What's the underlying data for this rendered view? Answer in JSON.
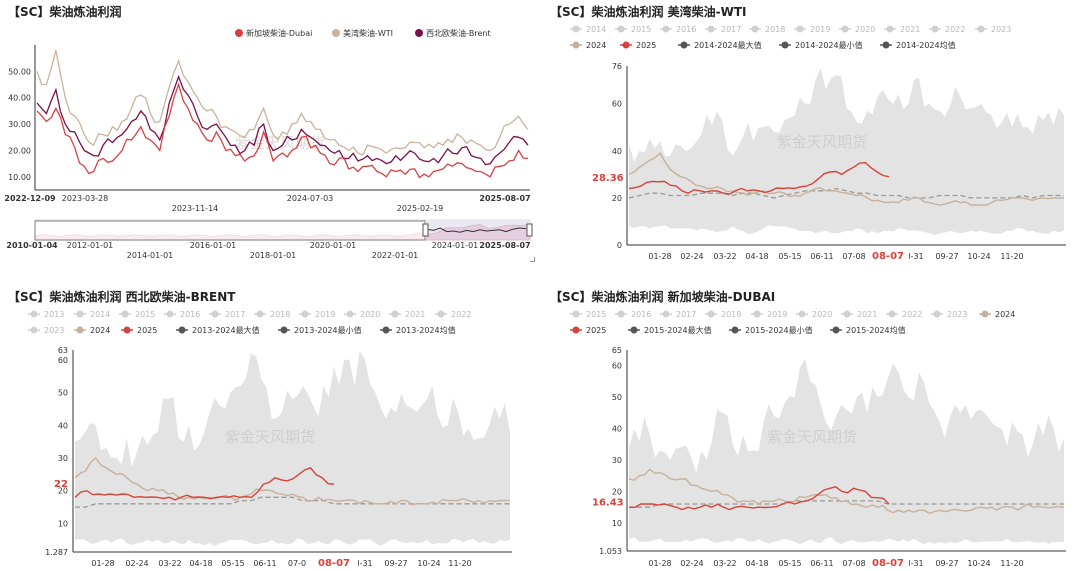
{
  "panels": {
    "p1": {
      "title": "【SC】柴油炼油利润"
    },
    "p2": {
      "title": "【SC】柴油炼油利润 美湾柴油-WTI"
    },
    "p3": {
      "title": "【SC】柴油炼油利润 西北欧柴油-BRENT"
    },
    "p4": {
      "title": "【SC】柴油炼油利润 新加坡柴油-DUBAI"
    }
  },
  "watermark": "紫金天风期货",
  "colors": {
    "dubai": "#d94040",
    "wti": "#c9b49b",
    "brent": "#7a1048",
    "band": "#e3e3e3",
    "avg": "#999999",
    "y2025": "#d9423a",
    "y2024": "#c6b19c"
  },
  "chart_data": [
    {
      "type": "line",
      "title": "【SC】柴油炼油利润",
      "legend_position": "top-right",
      "ylim": [
        5,
        60
      ],
      "y_ticks": [
        "10.00",
        "20.00",
        "30.00",
        "40.00",
        "50.00"
      ],
      "x_ticks": [
        "2022-12-09",
        "2023-03-28",
        "2023-11-14",
        "2024-07-03",
        "2025-02-19",
        "2025-08-07"
      ],
      "navigator_ticks": [
        "2010-01-04",
        "2012-01-01",
        "2014-01-01",
        "2016-01-01",
        "2018-01-01",
        "2020-01-01",
        "2022-01-01",
        "2024-01-01",
        "2025-08-07"
      ],
      "series": [
        {
          "name": "新加坡柴油-Dubai",
          "color": "#d94040",
          "values": [
            35,
            31,
            36,
            26,
            21,
            14,
            12,
            17,
            16,
            20,
            24,
            29,
            24,
            20,
            33,
            45,
            36,
            30,
            24,
            27,
            20,
            18,
            16,
            18,
            27,
            16,
            19,
            20,
            25,
            21,
            19,
            15,
            17,
            13,
            12,
            14,
            12,
            10,
            12,
            11,
            13,
            11,
            12,
            13,
            14,
            15,
            13,
            12,
            10,
            14,
            16,
            20,
            17
          ]
        },
        {
          "name": "美湾柴油-WTI",
          "color": "#c9b49b",
          "values": [
            50,
            45,
            58,
            40,
            33,
            26,
            22,
            26,
            29,
            31,
            36,
            41,
            34,
            31,
            44,
            54,
            46,
            40,
            35,
            33,
            29,
            27,
            25,
            28,
            36,
            26,
            27,
            30,
            34,
            31,
            28,
            24,
            22,
            20,
            19,
            22,
            21,
            19,
            21,
            21,
            23,
            21,
            21,
            22,
            23,
            25,
            24,
            22,
            20,
            25,
            30,
            33,
            28
          ]
        },
        {
          "name": "西北欧柴油-Brent",
          "color": "#7a1048",
          "values": [
            38,
            34,
            43,
            30,
            27,
            20,
            18,
            22,
            23,
            26,
            31,
            35,
            28,
            24,
            38,
            48,
            41,
            33,
            28,
            30,
            25,
            22,
            20,
            22,
            30,
            20,
            22,
            24,
            28,
            25,
            22,
            20,
            20,
            17,
            16,
            18,
            17,
            15,
            18,
            18,
            19,
            16,
            17,
            18,
            19,
            21,
            18,
            17,
            15,
            19,
            23,
            25,
            22
          ]
        }
      ]
    },
    {
      "type": "line",
      "title": "【SC】柴油炼油利润 美湾柴油-WTI",
      "legend": [
        "2014",
        "2015",
        "2016",
        "2017",
        "2018",
        "2019",
        "2020",
        "2021",
        "2022",
        "2023",
        "2024",
        "2025",
        "2014-2024最大值",
        "2014-2024最小值",
        "2014-2024均值"
      ],
      "y_ticks": [
        "0",
        "20",
        "40",
        "60",
        "76"
      ],
      "ylim": [
        0,
        76
      ],
      "x_ticks": [
        "01-28",
        "02-24",
        "03-22",
        "04-18",
        "05-15",
        "06-11",
        "07-08",
        "08-07",
        "l-31",
        "09-27",
        "10-24",
        "11-20"
      ],
      "last_value_label": "28.36",
      "band_max": [
        43,
        40,
        45,
        44,
        38,
        42,
        41,
        47,
        51,
        53,
        38,
        46,
        44,
        50,
        48,
        53,
        55,
        60,
        70,
        66,
        72,
        58,
        52,
        57,
        63,
        62,
        64,
        60,
        71,
        60,
        57,
        59,
        63,
        58,
        60,
        55,
        52,
        50,
        50,
        47,
        53,
        51,
        55
      ],
      "band_min": [
        8,
        8,
        7,
        8,
        7,
        7,
        7,
        7,
        6,
        6,
        8,
        6,
        5,
        7,
        8,
        8,
        7,
        6,
        5,
        6,
        5,
        6,
        7,
        5,
        5,
        6,
        7,
        6,
        6,
        5,
        5,
        6,
        5,
        6,
        6,
        5,
        5,
        6,
        7,
        6,
        5,
        6,
        6
      ],
      "avg": [
        20,
        21,
        22,
        22,
        21,
        21,
        21,
        22,
        22,
        22,
        21,
        22,
        22,
        21,
        20,
        21,
        22,
        23,
        23,
        23,
        24,
        23,
        22,
        22,
        21,
        21,
        21,
        20,
        20,
        20,
        21,
        21,
        21,
        20,
        20,
        20,
        20,
        20,
        21,
        20,
        21,
        21,
        21
      ],
      "series_2024": [
        30,
        33,
        36,
        39,
        32,
        29,
        27,
        25,
        24,
        24,
        23,
        22,
        22,
        23,
        22,
        22,
        21,
        22,
        24,
        23,
        23,
        22,
        21,
        20,
        19,
        18,
        18,
        19,
        20,
        18,
        17,
        18,
        18,
        17,
        17,
        18,
        19,
        20,
        20,
        19,
        20,
        20,
        20
      ],
      "series_2025": [
        24,
        25,
        27,
        27,
        25,
        22,
        23,
        23,
        22,
        23,
        23,
        23,
        23,
        24,
        24,
        25,
        28,
        31,
        30,
        33,
        35,
        31,
        29
      ]
    },
    {
      "type": "line",
      "title": "【SC】柴油炼油利润 西北欧柴油-BRENT",
      "legend": [
        "2013",
        "2014",
        "2015",
        "2016",
        "2017",
        "2018",
        "2019",
        "2020",
        "2021",
        "2022",
        "2023",
        "2024",
        "2025",
        "2013-2024最大值",
        "2013-2024最小值",
        "2013-2024均值"
      ],
      "y_ticks": [
        "1.287",
        "10",
        "20",
        "30",
        "40",
        "50",
        "60",
        "63"
      ],
      "ylim": [
        1.287,
        63
      ],
      "x_ticks": [
        "01-28",
        "02-24",
        "03-22",
        "04-18",
        "05-15",
        "06-11",
        "07-0",
        "08-07",
        "l-31",
        "09-27",
        "10-24",
        "11-20"
      ],
      "last_value_label": "22",
      "band_max": [
        35,
        38,
        40,
        33,
        30,
        36,
        32,
        34,
        38,
        48,
        36,
        40,
        34,
        44,
        46,
        50,
        52,
        62,
        54,
        42,
        44,
        48,
        52,
        46,
        52,
        58,
        60,
        52,
        60,
        50,
        42,
        44,
        46,
        44,
        48,
        43,
        40,
        44,
        39,
        36,
        40,
        42,
        38
      ],
      "band_min": [
        5,
        5,
        4,
        5,
        5,
        4,
        4,
        5,
        5,
        4,
        4,
        5,
        4,
        4,
        4,
        5,
        5,
        4,
        4,
        5,
        4,
        4,
        5,
        4,
        4,
        5,
        4,
        4,
        5,
        4,
        4,
        5,
        4,
        4,
        5,
        4,
        4,
        5,
        5,
        4,
        4,
        5,
        5
      ],
      "avg": [
        15,
        15,
        16,
        16,
        16,
        16,
        16,
        16,
        16,
        16,
        16,
        16,
        16,
        16,
        16,
        16,
        17,
        17,
        18,
        18,
        18,
        18,
        17,
        17,
        17,
        16,
        16,
        16,
        16,
        16,
        16,
        16,
        16,
        16,
        16,
        16,
        16,
        16,
        16,
        16,
        16,
        16,
        16
      ],
      "series_2024": [
        24,
        26,
        30,
        27,
        25,
        24,
        22,
        20,
        20,
        19,
        18,
        18,
        18,
        18,
        18,
        18,
        18,
        19,
        20,
        20,
        19,
        19,
        18,
        17,
        17,
        17,
        17,
        17,
        17,
        16,
        16,
        16,
        17,
        16,
        16,
        16,
        17,
        17,
        17,
        17,
        17,
        17,
        17
      ],
      "series_2025": [
        18,
        20,
        19,
        19,
        19,
        18,
        18,
        18,
        18,
        18,
        18,
        18,
        18,
        18,
        18,
        18,
        22,
        24,
        23,
        25,
        27,
        24,
        22
      ]
    },
    {
      "type": "line",
      "title": "【SC】柴油炼油利润 新加坡柴油-DUBAI",
      "legend": [
        "2015",
        "2016",
        "2017",
        "2018",
        "2019",
        "2020",
        "2021",
        "2022",
        "2023",
        "2024",
        "2025",
        "2015-2024最大值",
        "2015-2024最小值",
        "2015-2024均值"
      ],
      "y_ticks": [
        "1.053",
        "10",
        "20",
        "30",
        "40",
        "50",
        "60",
        "65"
      ],
      "ylim": [
        1.053,
        65
      ],
      "x_ticks": [
        "01-28",
        "02-24",
        "03-22",
        "04-18",
        "05-15",
        "06-11",
        "07-08",
        "08-07",
        "l-31",
        "09-27",
        "10-24",
        "11-20"
      ],
      "last_value_label": "16.43",
      "band_max": [
        34,
        36,
        38,
        33,
        30,
        34,
        31,
        33,
        36,
        45,
        35,
        38,
        33,
        42,
        44,
        48,
        50,
        62,
        54,
        42,
        44,
        46,
        50,
        45,
        50,
        56,
        58,
        50,
        58,
        48,
        42,
        44,
        45,
        43,
        46,
        42,
        40,
        42,
        38,
        35,
        38,
        40,
        37
      ],
      "band_min": [
        5,
        4,
        4,
        5,
        4,
        4,
        4,
        5,
        4,
        4,
        4,
        5,
        4,
        4,
        4,
        5,
        4,
        4,
        4,
        5,
        4,
        4,
        4,
        4,
        4,
        5,
        4,
        4,
        4,
        4,
        4,
        4,
        4,
        4,
        4,
        4,
        4,
        4,
        4,
        4,
        4,
        4,
        4
      ],
      "avg": [
        15,
        15,
        15,
        16,
        16,
        16,
        16,
        16,
        16,
        16,
        16,
        16,
        16,
        16,
        16,
        16,
        17,
        17,
        17,
        17,
        17,
        17,
        17,
        17,
        17,
        16,
        16,
        16,
        16,
        16,
        16,
        16,
        16,
        16,
        16,
        16,
        16,
        16,
        16,
        16,
        16,
        16,
        16
      ],
      "series_2024": [
        24,
        25,
        27,
        26,
        24,
        24,
        22,
        21,
        20,
        19,
        18,
        17,
        17,
        17,
        17,
        17,
        17,
        18,
        19,
        19,
        18,
        17,
        16,
        15,
        15,
        14,
        14,
        14,
        14,
        13,
        14,
        14,
        14,
        14,
        15,
        15,
        15,
        15,
        15,
        15,
        15,
        15,
        15
      ],
      "series_2025": [
        15,
        16,
        16,
        16,
        15,
        15,
        15,
        15,
        15,
        15,
        15,
        15,
        15,
        16,
        16,
        17,
        19,
        21,
        20,
        21,
        20,
        18,
        16
      ]
    }
  ]
}
